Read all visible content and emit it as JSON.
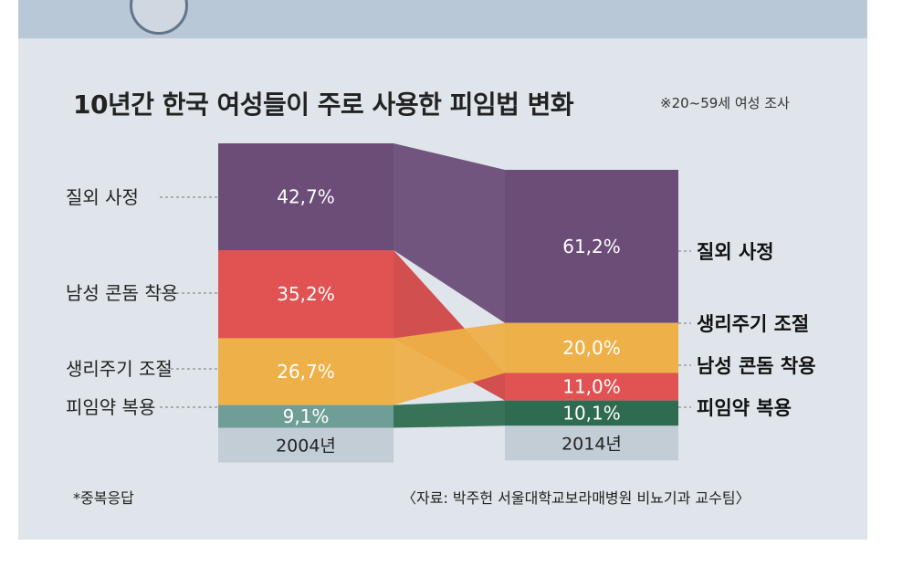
{
  "title": "10년간 한국 여성들이 주로 사용한 피임법 변화",
  "subtitle": "※20~59세 여성 조사",
  "footnote": "*중복응답",
  "source": "〈자료: 박주헌 서울대학교보라매병원 비뇨기과 교수팀〉",
  "chart_data": {
    "type": "bar",
    "categories": [
      "2004년",
      "2014년"
    ],
    "series": [
      {
        "name": "질외 사정",
        "values": [
          42.7,
          61.2
        ],
        "labels": [
          "42,7%",
          "61,2%"
        ],
        "color": "#6b4d78"
      },
      {
        "name": "남성 콘돔 착용",
        "values": [
          35.2,
          11.0
        ],
        "labels": [
          "35,2%",
          "11,0%"
        ],
        "color": "#e15353"
      },
      {
        "name": "생리주기 조절",
        "values": [
          26.7,
          20.0
        ],
        "labels": [
          "26,7%",
          "20,0%"
        ],
        "color": "#eeb048"
      },
      {
        "name": "피임약 복용",
        "values": [
          9.1,
          10.1
        ],
        "labels": [
          "9,1%",
          "10,1%"
        ],
        "color_2004": "#6f9e96",
        "color_2014": "#2e6b50"
      }
    ],
    "legend_2004": [
      "질외 사정",
      "남성 콘돔 착용",
      "생리주기 조절",
      "피임약 복용"
    ],
    "legend_2014": [
      "질외 사정",
      "생리주기 조절",
      "남성 콘돔 착용",
      "피임약 복용"
    ]
  }
}
